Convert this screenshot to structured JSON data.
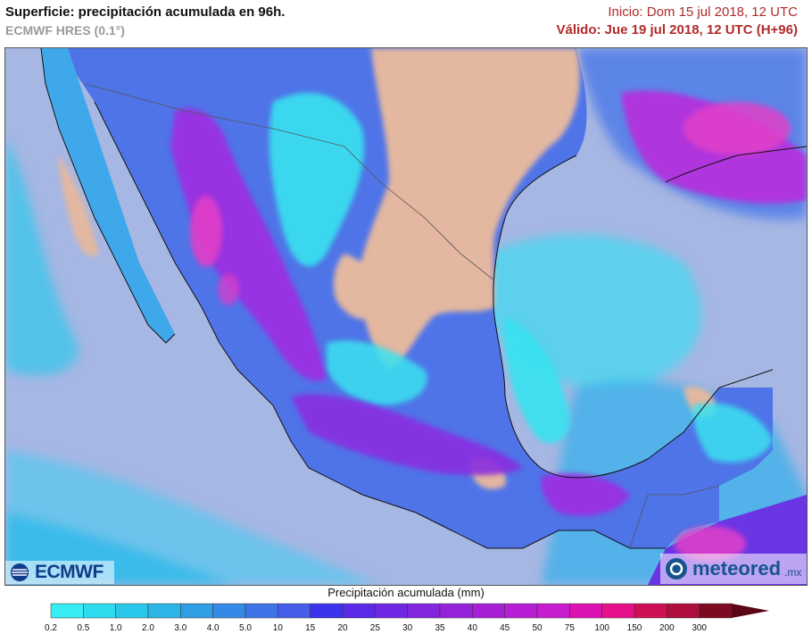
{
  "header": {
    "title": "Superficie: precipitación acumulada en 96h.",
    "model": "ECMWF HRES (0.1°)",
    "init": "Inicio: Dom 15 jul 2018, 12 UTC",
    "valid": "Válido: Jue 19 jul 2018, 12 UTC (H+96)"
  },
  "logos": {
    "ecmwf": "ECMWF",
    "meteored": "meteored",
    "meteored_tld": ".mx"
  },
  "legend": {
    "title": "Precipitación acumulada (mm)",
    "ticks": [
      "0.2",
      "0.5",
      "1.0",
      "2.0",
      "3.0",
      "4.0",
      "5.0",
      "10",
      "15",
      "20",
      "25",
      "30",
      "35",
      "40",
      "45",
      "50",
      "75",
      "100",
      "150",
      "200",
      "300"
    ],
    "colors": [
      "#37ecf2",
      "#2cdcee",
      "#29c8ea",
      "#2cb5e6",
      "#2f9ee4",
      "#3689e6",
      "#3f74e8",
      "#465eea",
      "#3b33ee",
      "#5a2ae8",
      "#7027e4",
      "#8325df",
      "#9622db",
      "#a81fd8",
      "#b81ed4",
      "#c71dce",
      "#dc12b3",
      "#e6108a",
      "#cf0f55",
      "#ae0f3c",
      "#7e0a22"
    ]
  },
  "map": {
    "ocean_color": "#a7b7e3",
    "dry_land_color": "#e3b7a0",
    "light_rain_color": "#38e2f0",
    "moderate_rain_color": "#4a78e8",
    "heavy_rain_color": "#9b2ee2",
    "extreme_rain_color": "#e23ec8"
  }
}
